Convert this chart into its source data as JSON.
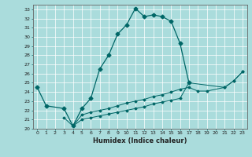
{
  "xlabel": "Humidex (Indice chaleur)",
  "background_color": "#aadcdc",
  "line_color": "#006666",
  "xlim": [
    -0.5,
    23.5
  ],
  "ylim": [
    20.0,
    33.5
  ],
  "xticks": [
    0,
    1,
    2,
    3,
    4,
    5,
    6,
    7,
    8,
    9,
    10,
    11,
    12,
    13,
    14,
    15,
    16,
    17,
    18,
    19,
    20,
    21,
    22,
    23
  ],
  "yticks": [
    20,
    21,
    22,
    23,
    24,
    25,
    26,
    27,
    28,
    29,
    30,
    31,
    32,
    33
  ],
  "series1": {
    "x": [
      0,
      1,
      3,
      4,
      5,
      6,
      7,
      8,
      9,
      10,
      11,
      12,
      13,
      14,
      15,
      16,
      17
    ],
    "y": [
      24.5,
      22.5,
      22.2,
      20.3,
      22.2,
      23.3,
      26.5,
      28.0,
      30.3,
      31.3,
      33.1,
      32.2,
      32.4,
      32.2,
      31.7,
      29.3,
      25.0
    ]
  },
  "series2": {
    "x": [
      3,
      4,
      5,
      6,
      7,
      8,
      9,
      10,
      11,
      12,
      13,
      14,
      15,
      16,
      17,
      18,
      19,
      21,
      22,
      23
    ],
    "y": [
      21.2,
      20.3,
      21.5,
      21.8,
      22.0,
      22.2,
      22.5,
      22.8,
      23.0,
      23.2,
      23.5,
      23.7,
      24.0,
      24.3,
      24.5,
      24.1,
      24.1,
      24.5,
      25.2,
      26.2
    ]
  },
  "series3": {
    "x": [
      4,
      5,
      6,
      7,
      8,
      9,
      10,
      11,
      12,
      13,
      14,
      15,
      16,
      17,
      21,
      22,
      23
    ],
    "y": [
      20.3,
      21.0,
      21.2,
      21.4,
      21.6,
      21.8,
      22.0,
      22.2,
      22.4,
      22.7,
      22.9,
      23.1,
      23.3,
      25.0,
      24.5,
      25.2,
      26.2
    ]
  }
}
